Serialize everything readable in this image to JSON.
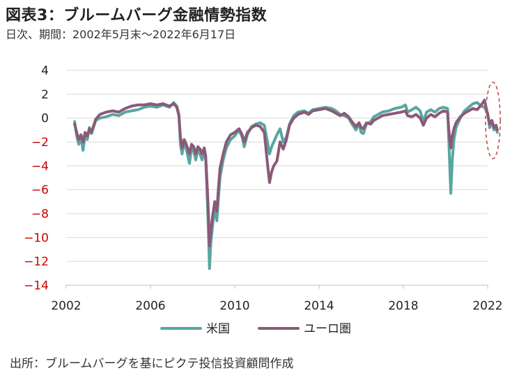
{
  "header": {
    "title": "図表3：ブルームバーグ金融情勢指数",
    "subtitle": "日次、期間：2002年5月末〜2022年6月17日"
  },
  "footer": {
    "source": "出所：ブルームバーグを基にピクテ投信投資顧問作成"
  },
  "colors": {
    "us": "#5aa5a0",
    "euro": "#8a5a78",
    "negative_tick": "#cc0000",
    "positive_tick": "#222222",
    "grid": "#d9d9d9",
    "highlight": "#c0504d"
  },
  "chart_data": {
    "type": "line",
    "title": "図表3：ブルームバーグ金融情勢指数",
    "xlabel": "",
    "ylabel": "",
    "xlim": [
      2002,
      2022
    ],
    "ylim": [
      -14,
      4
    ],
    "x_ticks": [
      "2002",
      "2006",
      "2010",
      "2014",
      "2018",
      "2022"
    ],
    "y_ticks": [
      "4",
      "2",
      "0",
      "−2",
      "−4",
      "−6",
      "−8",
      "−10",
      "−12",
      "−14"
    ],
    "y_tick_values": [
      4,
      2,
      0,
      -2,
      -4,
      -6,
      -8,
      -10,
      -12,
      -14
    ],
    "grid": true,
    "legend_position": "bottom",
    "series": [
      {
        "name": "米国",
        "points": [
          [
            2002.4,
            -0.3
          ],
          [
            2002.5,
            -1.5
          ],
          [
            2002.6,
            -2.2
          ],
          [
            2002.7,
            -1.6
          ],
          [
            2002.8,
            -2.7
          ],
          [
            2002.9,
            -1.4
          ],
          [
            2003.0,
            -1.8
          ],
          [
            2003.1,
            -0.8
          ],
          [
            2003.2,
            -1.3
          ],
          [
            2003.4,
            -0.2
          ],
          [
            2003.6,
            0.0
          ],
          [
            2003.9,
            0.1
          ],
          [
            2004.2,
            0.3
          ],
          [
            2004.5,
            0.2
          ],
          [
            2004.8,
            0.5
          ],
          [
            2005.1,
            0.6
          ],
          [
            2005.4,
            0.7
          ],
          [
            2005.7,
            0.9
          ],
          [
            2006.0,
            1.0
          ],
          [
            2006.3,
            0.9
          ],
          [
            2006.6,
            1.1
          ],
          [
            2006.9,
            0.9
          ],
          [
            2007.1,
            1.3
          ],
          [
            2007.25,
            1.0
          ],
          [
            2007.35,
            0.3
          ],
          [
            2007.42,
            -2.2
          ],
          [
            2007.5,
            -3.0
          ],
          [
            2007.6,
            -2.0
          ],
          [
            2007.7,
            -2.6
          ],
          [
            2007.85,
            -3.8
          ],
          [
            2007.95,
            -2.4
          ],
          [
            2008.05,
            -2.8
          ],
          [
            2008.15,
            -3.5
          ],
          [
            2008.25,
            -2.6
          ],
          [
            2008.35,
            -3.0
          ],
          [
            2008.45,
            -3.5
          ],
          [
            2008.55,
            -2.6
          ],
          [
            2008.62,
            -3.5
          ],
          [
            2008.7,
            -7.0
          ],
          [
            2008.75,
            -9.5
          ],
          [
            2008.8,
            -12.6
          ],
          [
            2008.86,
            -10.5
          ],
          [
            2008.95,
            -9.0
          ],
          [
            2009.05,
            -7.5
          ],
          [
            2009.15,
            -8.6
          ],
          [
            2009.22,
            -6.8
          ],
          [
            2009.3,
            -5.0
          ],
          [
            2009.45,
            -3.5
          ],
          [
            2009.6,
            -2.5
          ],
          [
            2009.8,
            -1.8
          ],
          [
            2010.0,
            -1.5
          ],
          [
            2010.2,
            -1.0
          ],
          [
            2010.35,
            -1.6
          ],
          [
            2010.45,
            -2.4
          ],
          [
            2010.6,
            -1.4
          ],
          [
            2010.8,
            -0.7
          ],
          [
            2011.0,
            -0.5
          ],
          [
            2011.2,
            -0.4
          ],
          [
            2011.4,
            -0.6
          ],
          [
            2011.55,
            -2.0
          ],
          [
            2011.65,
            -3.0
          ],
          [
            2011.75,
            -2.4
          ],
          [
            2011.85,
            -2.0
          ],
          [
            2012.0,
            -1.4
          ],
          [
            2012.15,
            -0.9
          ],
          [
            2012.3,
            -2.0
          ],
          [
            2012.45,
            -1.6
          ],
          [
            2012.6,
            -0.5
          ],
          [
            2012.8,
            0.2
          ],
          [
            2013.0,
            0.5
          ],
          [
            2013.3,
            0.6
          ],
          [
            2013.5,
            0.4
          ],
          [
            2013.7,
            0.7
          ],
          [
            2014.0,
            0.8
          ],
          [
            2014.3,
            0.9
          ],
          [
            2014.6,
            0.8
          ],
          [
            2014.8,
            0.6
          ],
          [
            2015.0,
            0.3
          ],
          [
            2015.2,
            0.2
          ],
          [
            2015.4,
            0.0
          ],
          [
            2015.6,
            -0.6
          ],
          [
            2015.75,
            -1.0
          ],
          [
            2015.9,
            -0.5
          ],
          [
            2016.0,
            -1.2
          ],
          [
            2016.1,
            -1.3
          ],
          [
            2016.25,
            -0.5
          ],
          [
            2016.45,
            -0.3
          ],
          [
            2016.6,
            0.1
          ],
          [
            2016.8,
            0.3
          ],
          [
            2017.0,
            0.5
          ],
          [
            2017.3,
            0.6
          ],
          [
            2017.6,
            0.8
          ],
          [
            2017.9,
            0.9
          ],
          [
            2018.1,
            1.1
          ],
          [
            2018.2,
            0.5
          ],
          [
            2018.4,
            0.7
          ],
          [
            2018.6,
            0.9
          ],
          [
            2018.8,
            0.6
          ],
          [
            2018.95,
            -0.3
          ],
          [
            2019.1,
            0.5
          ],
          [
            2019.3,
            0.7
          ],
          [
            2019.5,
            0.5
          ],
          [
            2019.7,
            0.8
          ],
          [
            2019.9,
            0.9
          ],
          [
            2020.1,
            0.8
          ],
          [
            2020.15,
            -1.5
          ],
          [
            2020.2,
            -4.0
          ],
          [
            2020.25,
            -6.3
          ],
          [
            2020.32,
            -3.5
          ],
          [
            2020.4,
            -1.8
          ],
          [
            2020.5,
            -0.8
          ],
          [
            2020.7,
            0.0
          ],
          [
            2020.9,
            0.6
          ],
          [
            2021.1,
            0.9
          ],
          [
            2021.3,
            1.2
          ],
          [
            2021.5,
            1.3
          ],
          [
            2021.7,
            1.0
          ],
          [
            2021.85,
            0.9
          ],
          [
            2022.0,
            0.4
          ],
          [
            2022.1,
            -0.8
          ],
          [
            2022.2,
            -0.3
          ],
          [
            2022.3,
            -1.0
          ],
          [
            2022.4,
            -0.8
          ],
          [
            2022.46,
            -1.2
          ]
        ]
      },
      {
        "name": "ユーロ圏",
        "points": [
          [
            2002.4,
            -0.5
          ],
          [
            2002.5,
            -1.2
          ],
          [
            2002.6,
            -1.8
          ],
          [
            2002.7,
            -1.4
          ],
          [
            2002.8,
            -2.0
          ],
          [
            2002.9,
            -1.2
          ],
          [
            2003.0,
            -1.5
          ],
          [
            2003.1,
            -0.9
          ],
          [
            2003.2,
            -1.2
          ],
          [
            2003.4,
            -0.1
          ],
          [
            2003.6,
            0.3
          ],
          [
            2003.9,
            0.5
          ],
          [
            2004.2,
            0.6
          ],
          [
            2004.5,
            0.5
          ],
          [
            2004.8,
            0.8
          ],
          [
            2005.1,
            1.0
          ],
          [
            2005.4,
            1.1
          ],
          [
            2005.7,
            1.1
          ],
          [
            2006.0,
            1.2
          ],
          [
            2006.3,
            1.1
          ],
          [
            2006.6,
            1.2
          ],
          [
            2006.9,
            1.0
          ],
          [
            2007.1,
            1.2
          ],
          [
            2007.25,
            0.9
          ],
          [
            2007.35,
            0.2
          ],
          [
            2007.42,
            -1.6
          ],
          [
            2007.5,
            -2.5
          ],
          [
            2007.6,
            -1.8
          ],
          [
            2007.7,
            -2.2
          ],
          [
            2007.85,
            -3.0
          ],
          [
            2007.95,
            -2.2
          ],
          [
            2008.05,
            -2.4
          ],
          [
            2008.15,
            -3.0
          ],
          [
            2008.25,
            -2.4
          ],
          [
            2008.35,
            -2.6
          ],
          [
            2008.45,
            -3.0
          ],
          [
            2008.55,
            -2.5
          ],
          [
            2008.62,
            -3.2
          ],
          [
            2008.7,
            -6.0
          ],
          [
            2008.75,
            -8.0
          ],
          [
            2008.8,
            -10.7
          ],
          [
            2008.86,
            -9.5
          ],
          [
            2008.95,
            -8.2
          ],
          [
            2009.05,
            -7.0
          ],
          [
            2009.15,
            -7.8
          ],
          [
            2009.22,
            -6.0
          ],
          [
            2009.3,
            -4.2
          ],
          [
            2009.45,
            -3.0
          ],
          [
            2009.6,
            -2.0
          ],
          [
            2009.8,
            -1.4
          ],
          [
            2010.0,
            -1.2
          ],
          [
            2010.2,
            -0.9
          ],
          [
            2010.35,
            -1.4
          ],
          [
            2010.45,
            -2.0
          ],
          [
            2010.6,
            -1.2
          ],
          [
            2010.8,
            -0.8
          ],
          [
            2011.0,
            -0.6
          ],
          [
            2011.2,
            -0.7
          ],
          [
            2011.4,
            -1.2
          ],
          [
            2011.55,
            -3.8
          ],
          [
            2011.65,
            -5.4
          ],
          [
            2011.75,
            -4.5
          ],
          [
            2011.85,
            -4.0
          ],
          [
            2012.0,
            -3.6
          ],
          [
            2012.15,
            -2.0
          ],
          [
            2012.3,
            -2.6
          ],
          [
            2012.45,
            -1.8
          ],
          [
            2012.6,
            -0.6
          ],
          [
            2012.8,
            0.0
          ],
          [
            2013.0,
            0.3
          ],
          [
            2013.3,
            0.5
          ],
          [
            2013.5,
            0.3
          ],
          [
            2013.7,
            0.6
          ],
          [
            2014.0,
            0.7
          ],
          [
            2014.3,
            0.8
          ],
          [
            2014.6,
            0.6
          ],
          [
            2014.8,
            0.4
          ],
          [
            2015.0,
            0.2
          ],
          [
            2015.2,
            0.4
          ],
          [
            2015.4,
            0.1
          ],
          [
            2015.6,
            -0.4
          ],
          [
            2015.75,
            -0.7
          ],
          [
            2015.9,
            -0.4
          ],
          [
            2016.0,
            -0.8
          ],
          [
            2016.1,
            -0.9
          ],
          [
            2016.25,
            -0.4
          ],
          [
            2016.45,
            -0.5
          ],
          [
            2016.6,
            -0.2
          ],
          [
            2016.8,
            0.0
          ],
          [
            2017.0,
            0.2
          ],
          [
            2017.3,
            0.3
          ],
          [
            2017.6,
            0.4
          ],
          [
            2017.9,
            0.5
          ],
          [
            2018.1,
            0.6
          ],
          [
            2018.2,
            0.2
          ],
          [
            2018.4,
            0.1
          ],
          [
            2018.6,
            0.3
          ],
          [
            2018.8,
            0.0
          ],
          [
            2018.95,
            -0.6
          ],
          [
            2019.1,
            0.0
          ],
          [
            2019.3,
            0.3
          ],
          [
            2019.5,
            0.1
          ],
          [
            2019.7,
            0.4
          ],
          [
            2019.9,
            0.6
          ],
          [
            2020.1,
            0.5
          ],
          [
            2020.15,
            -0.8
          ],
          [
            2020.2,
            -1.8
          ],
          [
            2020.25,
            -2.5
          ],
          [
            2020.32,
            -1.5
          ],
          [
            2020.4,
            -0.9
          ],
          [
            2020.5,
            -0.4
          ],
          [
            2020.7,
            0.1
          ],
          [
            2020.9,
            0.4
          ],
          [
            2021.1,
            0.6
          ],
          [
            2021.3,
            0.8
          ],
          [
            2021.5,
            0.7
          ],
          [
            2021.7,
            1.1
          ],
          [
            2021.85,
            1.5
          ],
          [
            2022.0,
            0.3
          ],
          [
            2022.1,
            -0.5
          ],
          [
            2022.2,
            -0.2
          ],
          [
            2022.3,
            -0.8
          ],
          [
            2022.4,
            -0.6
          ],
          [
            2022.46,
            -1.0
          ]
        ]
      }
    ],
    "annotations": [
      {
        "type": "ellipse",
        "style": "dashed",
        "x_range": [
          2021.9,
          2022.6
        ],
        "y_range": [
          -3.4,
          3.0
        ]
      }
    ]
  }
}
